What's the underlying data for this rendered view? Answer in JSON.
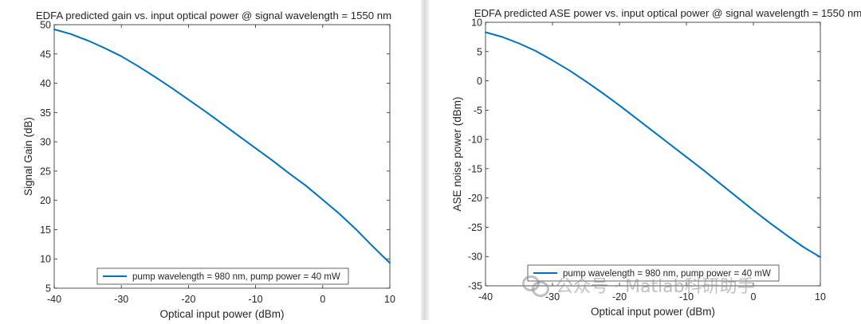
{
  "chart_data": [
    {
      "type": "line",
      "title": "EDFA predicted gain vs. input optical power @ signal wavelength = 1550 nm",
      "xlabel": "Optical input power (dBm)",
      "ylabel": "Signal Gain (dB)",
      "xlim": [
        -40,
        10
      ],
      "ylim": [
        5,
        50
      ],
      "xticks": [
        -40,
        -30,
        -20,
        -10,
        0,
        10
      ],
      "yticks": [
        5,
        10,
        15,
        20,
        25,
        30,
        35,
        40,
        45,
        50
      ],
      "grid": false,
      "legend_position": "bottom",
      "series": [
        {
          "name": "pump wavelength = 980 nm, pump power = 40 mW",
          "color": "#0072BD",
          "x": [
            -40,
            -37.5,
            -35,
            -32.5,
            -30,
            -27.5,
            -25,
            -22.5,
            -20,
            -17.5,
            -15,
            -12.5,
            -10,
            -7.5,
            -5,
            -2.5,
            0,
            2.5,
            5,
            7.5,
            10
          ],
          "y": [
            49.2,
            48.4,
            47.3,
            46.0,
            44.6,
            42.9,
            41.1,
            39.2,
            37.2,
            35.2,
            33.1,
            31.0,
            28.9,
            26.8,
            24.6,
            22.5,
            20.1,
            17.7,
            15.0,
            12.1,
            9.3
          ]
        }
      ]
    },
    {
      "type": "line",
      "title": "EDFA predicted ASE power vs. input optical power @ signal wavelength = 1550 nm",
      "xlabel": "Optical input power (dBm)",
      "ylabel": "ASE noise power (dBm)",
      "xlim": [
        -40,
        10
      ],
      "ylim": [
        -35,
        10
      ],
      "xticks": [
        -40,
        -30,
        -20,
        -10,
        0,
        10
      ],
      "yticks": [
        -35,
        -30,
        -25,
        -20,
        -15,
        -10,
        -5,
        0,
        5,
        10
      ],
      "grid": false,
      "legend_position": "bottom",
      "series": [
        {
          "name": "pump wavelength = 980 nm, pump power = 40 mW",
          "color": "#0072BD",
          "x": [
            -40,
            -37.5,
            -35,
            -32.5,
            -30,
            -27.5,
            -25,
            -22.5,
            -20,
            -17.5,
            -15,
            -12.5,
            -10,
            -7.5,
            -5,
            -2.5,
            0,
            2.5,
            5,
            7.5,
            10
          ],
          "y": [
            8.3,
            7.5,
            6.4,
            5.1,
            3.5,
            1.8,
            -0.1,
            -2.1,
            -4.2,
            -6.4,
            -8.6,
            -10.8,
            -13.0,
            -15.2,
            -17.5,
            -19.8,
            -22.1,
            -24.3,
            -26.4,
            -28.4,
            -30.1
          ]
        }
      ]
    }
  ],
  "watermark": {
    "text": "公众号 · Matlab科研助手",
    "icon": "wechat-icon"
  }
}
